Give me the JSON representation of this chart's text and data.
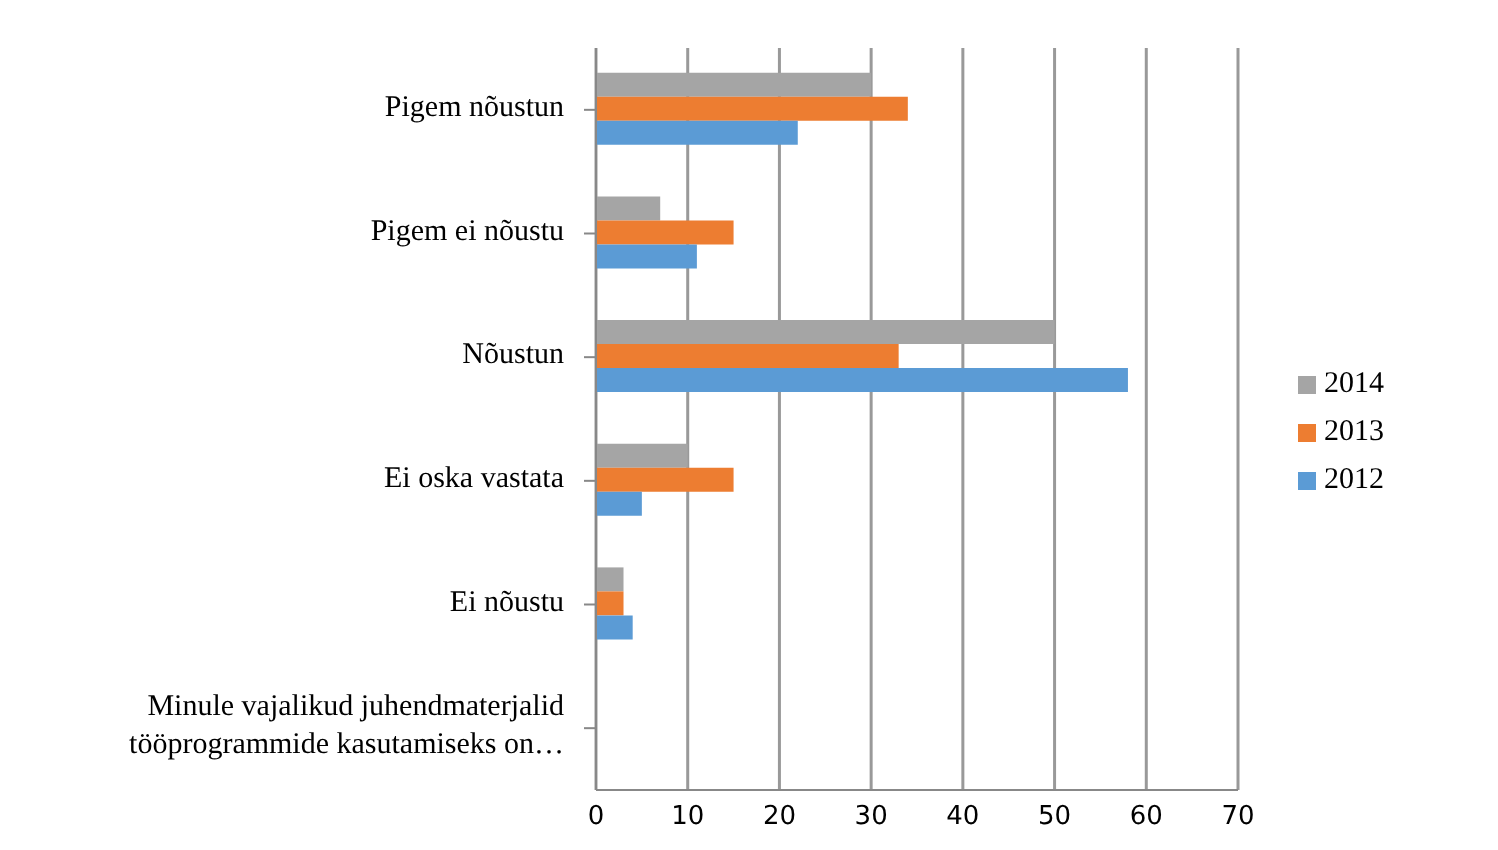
{
  "chart_data": {
    "type": "bar",
    "orientation": "horizontal",
    "categories": [
      "Pigem nõustun",
      "Pigem ei nõustu",
      "Nõustun",
      "Ei oska vastata",
      "Ei nõustu",
      "Minule vajalikud juhendmaterjalid tööprogrammide kasutamiseks on…"
    ],
    "series": [
      {
        "name": "2014",
        "color": "#a5a5a5",
        "values": [
          30,
          7,
          50,
          10,
          3,
          null
        ]
      },
      {
        "name": "2013",
        "color": "#ed7d31",
        "values": [
          34,
          15,
          33,
          15,
          3,
          null
        ]
      },
      {
        "name": "2012",
        "color": "#5b9bd5",
        "values": [
          22,
          11,
          58,
          5,
          4,
          null
        ]
      }
    ],
    "xlim": [
      0,
      70
    ],
    "xticks": [
      0,
      10,
      20,
      30,
      40,
      50,
      60,
      70
    ],
    "grid": "x",
    "legend": "right"
  }
}
